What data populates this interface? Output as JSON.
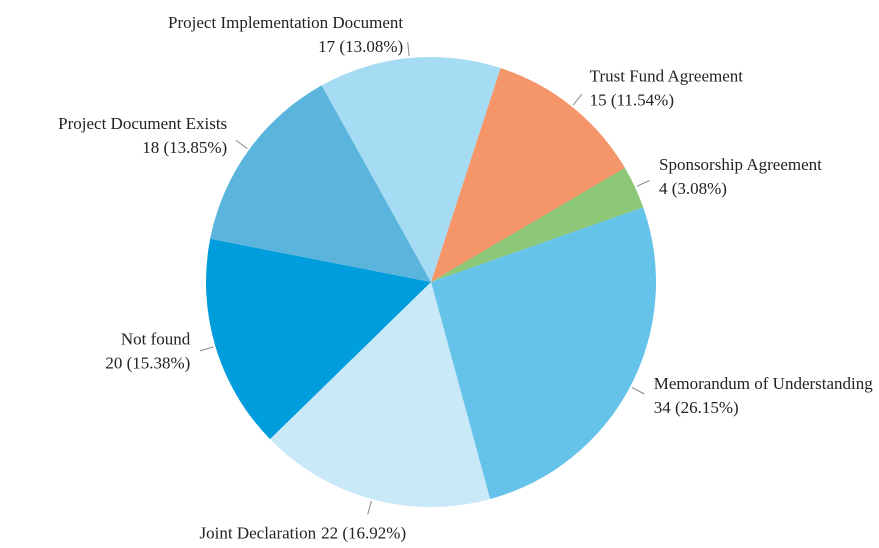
{
  "chart_data": {
    "type": "pie",
    "categories": [
      "Trust Fund Agreement",
      "Sponsorship Agreement",
      "Memorandum of Understanding",
      "Joint Declaration",
      "Not found",
      "Project Document Exists",
      "Project Implementation Document"
    ],
    "values": [
      15,
      4,
      34,
      22,
      20,
      18,
      17
    ],
    "value_labels": [
      "15 (11.54%)",
      "4 (3.08%)",
      "34 (26.15%)",
      "22 (16.92%)",
      "20 (15.38%)",
      "18 (13.85%)",
      "17 (13.08%)"
    ],
    "colors": [
      "#f4956a",
      "#8dc878",
      "#65c3ea",
      "#c9e8f8",
      "#009ddc",
      "#5ab4dc",
      "#a5dbf3"
    ]
  }
}
